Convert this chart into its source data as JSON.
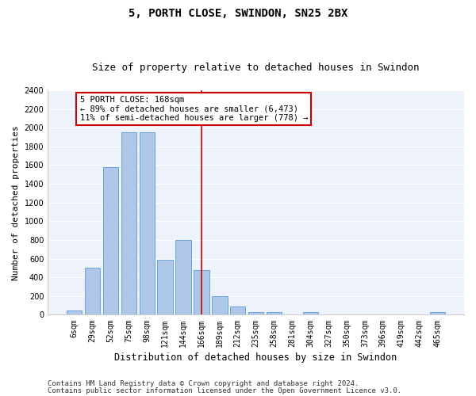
{
  "title": "5, PORTH CLOSE, SWINDON, SN25 2BX",
  "subtitle": "Size of property relative to detached houses in Swindon",
  "xlabel": "Distribution of detached houses by size in Swindon",
  "ylabel": "Number of detached properties",
  "categories": [
    "6sqm",
    "29sqm",
    "52sqm",
    "75sqm",
    "98sqm",
    "121sqm",
    "144sqm",
    "166sqm",
    "189sqm",
    "212sqm",
    "235sqm",
    "258sqm",
    "281sqm",
    "304sqm",
    "327sqm",
    "350sqm",
    "373sqm",
    "396sqm",
    "419sqm",
    "442sqm",
    "465sqm"
  ],
  "values": [
    50,
    500,
    1580,
    1950,
    1950,
    590,
    800,
    480,
    195,
    90,
    25,
    25,
    0,
    25,
    0,
    0,
    0,
    0,
    0,
    0,
    25
  ],
  "bar_color": "#aec6e8",
  "bar_edge_color": "#5b9bd5",
  "marker_index": 7,
  "marker_label": "5 PORTH CLOSE: 168sqm",
  "arrow_left_text": "← 89% of detached houses are smaller (6,473)",
  "arrow_right_text": "11% of semi-detached houses are larger (778) →",
  "marker_line_color": "#cc0000",
  "annotation_box_color": "#cc0000",
  "ylim": [
    0,
    2400
  ],
  "yticks": [
    0,
    200,
    400,
    600,
    800,
    1000,
    1200,
    1400,
    1600,
    1800,
    2000,
    2200,
    2400
  ],
  "background_color": "#eef2fb",
  "grid_color": "#ffffff",
  "footer_line1": "Contains HM Land Registry data © Crown copyright and database right 2024.",
  "footer_line2": "Contains public sector information licensed under the Open Government Licence v3.0.",
  "title_fontsize": 10,
  "subtitle_fontsize": 9,
  "xlabel_fontsize": 8.5,
  "ylabel_fontsize": 8,
  "tick_fontsize": 7,
  "annotation_fontsize": 7.5,
  "footer_fontsize": 6.5
}
